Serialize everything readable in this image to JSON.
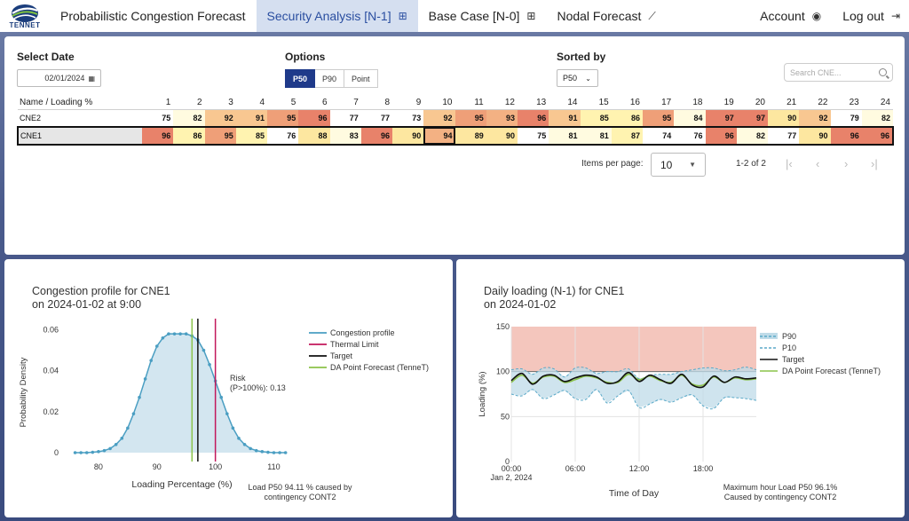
{
  "nav": {
    "logo": "TENNET",
    "items": [
      {
        "label": "Probabilistic Congestion Forecast",
        "icon": "",
        "active": false
      },
      {
        "label": "Security Analysis [N-1]",
        "icon": "table-icon",
        "active": true
      },
      {
        "label": "Base Case [N-0]",
        "icon": "table-icon",
        "active": false
      },
      {
        "label": "Nodal Forecast",
        "icon": "chart-line-icon",
        "active": false
      }
    ],
    "account": "Account",
    "logout": "Log out"
  },
  "controls": {
    "date_label": "Select Date",
    "date_value": "02/01/2024",
    "options_label": "Options",
    "options": [
      "P50",
      "P90",
      "Point"
    ],
    "options_selected": "P50",
    "sorted_label": "Sorted by",
    "sorted_value": "P50",
    "search_placeholder": "Search CNE..."
  },
  "table": {
    "name_header": "Name / Loading %",
    "hours": [
      "1",
      "2",
      "3",
      "4",
      "5",
      "6",
      "7",
      "8",
      "9",
      "10",
      "11",
      "12",
      "13",
      "14",
      "15",
      "16",
      "17",
      "18",
      "19",
      "20",
      "21",
      "22",
      "23",
      "24"
    ],
    "rows": [
      {
        "name": "CNE2",
        "values": [
          75,
          82,
          92,
          91,
          95,
          96,
          77,
          77,
          73,
          92,
          95,
          93,
          96,
          91,
          85,
          86,
          95,
          84,
          97,
          97,
          90,
          92,
          79,
          82
        ],
        "selected": false
      },
      {
        "name": "CNE1",
        "values": [
          96,
          86,
          95,
          85,
          76,
          88,
          83,
          96,
          90,
          94,
          89,
          90,
          75,
          81,
          81,
          87,
          74,
          76,
          96,
          82,
          77,
          90,
          96,
          96
        ],
        "selected": true,
        "focused_hour": 10
      }
    ]
  },
  "pagination": {
    "items_per_page_label": "Items per page:",
    "items_per_page": "10",
    "range": "1-2 of 2"
  },
  "colors": {
    "accent": "#1f3a8a",
    "nav_active_bg": "#d5dff0",
    "heat_low": "#ffffff",
    "heat_mid": "#fff3b0",
    "heat_high": "#e8826a"
  },
  "left_chart": {
    "title_line1": "Congestion profile for CNE1",
    "title_line2": "on 2024-01-02 at 9:00",
    "xlabel": "Loading Percentage (%)",
    "ylabel": "Probability Density",
    "risk_line1": "Risk",
    "risk_line2": "(P>100%): 0.13",
    "caption_line1": "Load P50 94.11 % caused by",
    "caption_line2": "contingency CONT2"
  },
  "right_chart": {
    "title_line1": "Daily loading (N-1) for CNE1",
    "title_line2": "on 2024-01-02",
    "xlabel": "Time of Day",
    "ylabel": "Loading (%)",
    "date_tick": "Jan 2, 2024",
    "caption_line1": "Maximum hour Load P50 96.1%",
    "caption_line2": "Caused by contingency CONT2"
  },
  "chart_data": [
    {
      "type": "area",
      "title": "Congestion profile for CNE1 on 2024-01-02 at 9:00",
      "xlabel": "Loading Percentage (%)",
      "ylabel": "Probability Density",
      "xlim": [
        75,
        116
      ],
      "ylim": [
        0,
        0.065
      ],
      "xticks": [
        80,
        90,
        100,
        110
      ],
      "yticks": [
        0,
        0.02,
        0.04,
        0.06
      ],
      "ytick_labels": [
        "0",
        "0.02",
        "0.04",
        "0.06"
      ],
      "series": [
        {
          "name": "Congestion profile",
          "color": "#4a9ec2",
          "x": [
            76,
            77,
            78,
            79,
            80,
            81,
            82,
            83,
            84,
            85,
            86,
            87,
            88,
            89,
            90,
            91,
            92,
            93,
            94,
            95,
            96,
            97,
            98,
            99,
            100,
            101,
            102,
            103,
            104,
            105,
            106,
            107,
            108,
            109,
            110,
            111,
            112
          ],
          "y": [
            0,
            0,
            0,
            0.0002,
            0.0005,
            0.001,
            0.002,
            0.004,
            0.007,
            0.012,
            0.019,
            0.027,
            0.036,
            0.045,
            0.052,
            0.056,
            0.058,
            0.058,
            0.058,
            0.058,
            0.057,
            0.055,
            0.05,
            0.043,
            0.035,
            0.027,
            0.019,
            0.012,
            0.007,
            0.004,
            0.002,
            0.001,
            0.0005,
            0.0002,
            0,
            0,
            0
          ]
        },
        {
          "name": "Thermal Limit",
          "color": "#c2185b",
          "x": 100
        },
        {
          "name": "Target",
          "color": "#111111",
          "x": 97
        },
        {
          "name": "DA Point Forecast (TenneT)",
          "color": "#8bc34a",
          "x": 96
        }
      ],
      "annotation": "Risk (P>100%): 0.13",
      "legend": "top-right"
    },
    {
      "type": "line",
      "title": "Daily loading (N-1) for CNE1 on 2024-01-02",
      "xlabel": "Time of Day",
      "ylabel": "Loading (%)",
      "ylim": [
        0,
        150
      ],
      "xticks": [
        "00:00",
        "06:00",
        "12:00",
        "18:00"
      ],
      "yticks": [
        0,
        50,
        100,
        150
      ],
      "x": [
        "00:00",
        "01:00",
        "02:00",
        "03:00",
        "04:00",
        "05:00",
        "06:00",
        "07:00",
        "08:00",
        "09:00",
        "10:00",
        "11:00",
        "12:00",
        "13:00",
        "14:00",
        "15:00",
        "16:00",
        "17:00",
        "18:00",
        "19:00",
        "20:00",
        "21:00",
        "22:00",
        "23:00"
      ],
      "series": [
        {
          "name": "P90",
          "values": [
            102,
            103,
            97,
            104,
            103,
            94,
            104,
            104,
            98,
            100,
            100,
            103,
            92,
            96,
            97,
            97,
            100,
            102,
            104,
            104,
            101,
            102,
            105,
            102
          ]
        },
        {
          "name": "P10",
          "values": [
            75,
            73,
            80,
            70,
            74,
            79,
            70,
            69,
            80,
            65,
            73,
            79,
            60,
            64,
            69,
            66,
            71,
            74,
            62,
            59,
            71,
            71,
            70,
            68
          ]
        },
        {
          "name": "Target",
          "values": [
            90,
            98,
            86,
            95,
            96,
            89,
            93,
            96,
            94,
            87,
            89,
            99,
            89,
            96,
            91,
            87,
            97,
            85,
            83,
            95,
            88,
            94,
            92,
            93
          ]
        },
        {
          "name": "DA Point Forecast (TenneT)",
          "values": [
            88,
            96,
            87,
            94,
            95,
            88,
            91,
            95,
            93,
            88,
            88,
            97,
            91,
            95,
            90,
            88,
            96,
            86,
            85,
            94,
            88,
            93,
            91,
            92
          ]
        }
      ],
      "shaded_band": {
        "from": 100,
        "to": 150,
        "color": "#f4c6bd"
      },
      "legend": "top-right"
    }
  ]
}
